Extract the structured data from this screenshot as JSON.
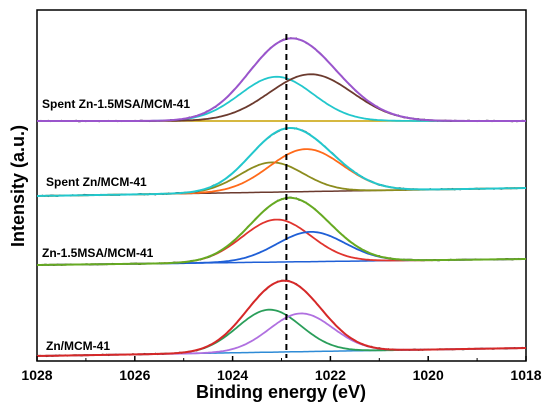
{
  "chart_data": {
    "type": "line",
    "xlabel": "Binding energy (eV)",
    "ylabel": "Intensity (a.u.)",
    "xlim": [
      1028,
      1018
    ],
    "x_reversed": true,
    "x_ticks": [
      "1028",
      "1026",
      "1024",
      "1022",
      "1020",
      "1018"
    ],
    "y_ticks_shown": false,
    "reference_line": {
      "x": 1022.9,
      "style": "dashed",
      "color": "#000000"
    },
    "panels": [
      {
        "label": "Spent Zn-1.5MSA/MCM-41",
        "baseline_color": "#c8a000",
        "envelope_color": "#9a55cc",
        "fit": [
          {
            "center": 1023.1,
            "height": 0.52,
            "width": 0.75,
            "color": "#22c7cc"
          },
          {
            "center": 1022.4,
            "height": 0.55,
            "width": 0.85,
            "color": "#6b3a2e"
          }
        ]
      },
      {
        "label": "Spent Zn/MCM-41",
        "baseline_color": "#6b3a2e",
        "envelope_color": "#22c7cc",
        "fit": [
          {
            "center": 1023.2,
            "height": 0.35,
            "width": 0.65,
            "color": "#8c8c1e"
          },
          {
            "center": 1022.5,
            "height": 0.5,
            "width": 0.75,
            "color": "#ff6a1a"
          }
        ]
      },
      {
        "label": "Zn-1.5MSA/MCM-41",
        "baseline_color": "#1f5fd6",
        "envelope_color": "#66aa22",
        "fit": [
          {
            "center": 1023.1,
            "height": 0.5,
            "width": 0.7,
            "color": "#e0342e"
          },
          {
            "center": 1022.4,
            "height": 0.35,
            "width": 0.7,
            "color": "#1f5fd6"
          }
        ]
      },
      {
        "label": "Zn/MCM-41",
        "baseline_color": "#2e8bd6",
        "envelope_color": "#d62828",
        "fit": [
          {
            "center": 1023.25,
            "height": 0.5,
            "width": 0.65,
            "color": "#2a9e5a"
          },
          {
            "center": 1022.6,
            "height": 0.45,
            "width": 0.65,
            "color": "#b070e0"
          }
        ]
      }
    ]
  }
}
